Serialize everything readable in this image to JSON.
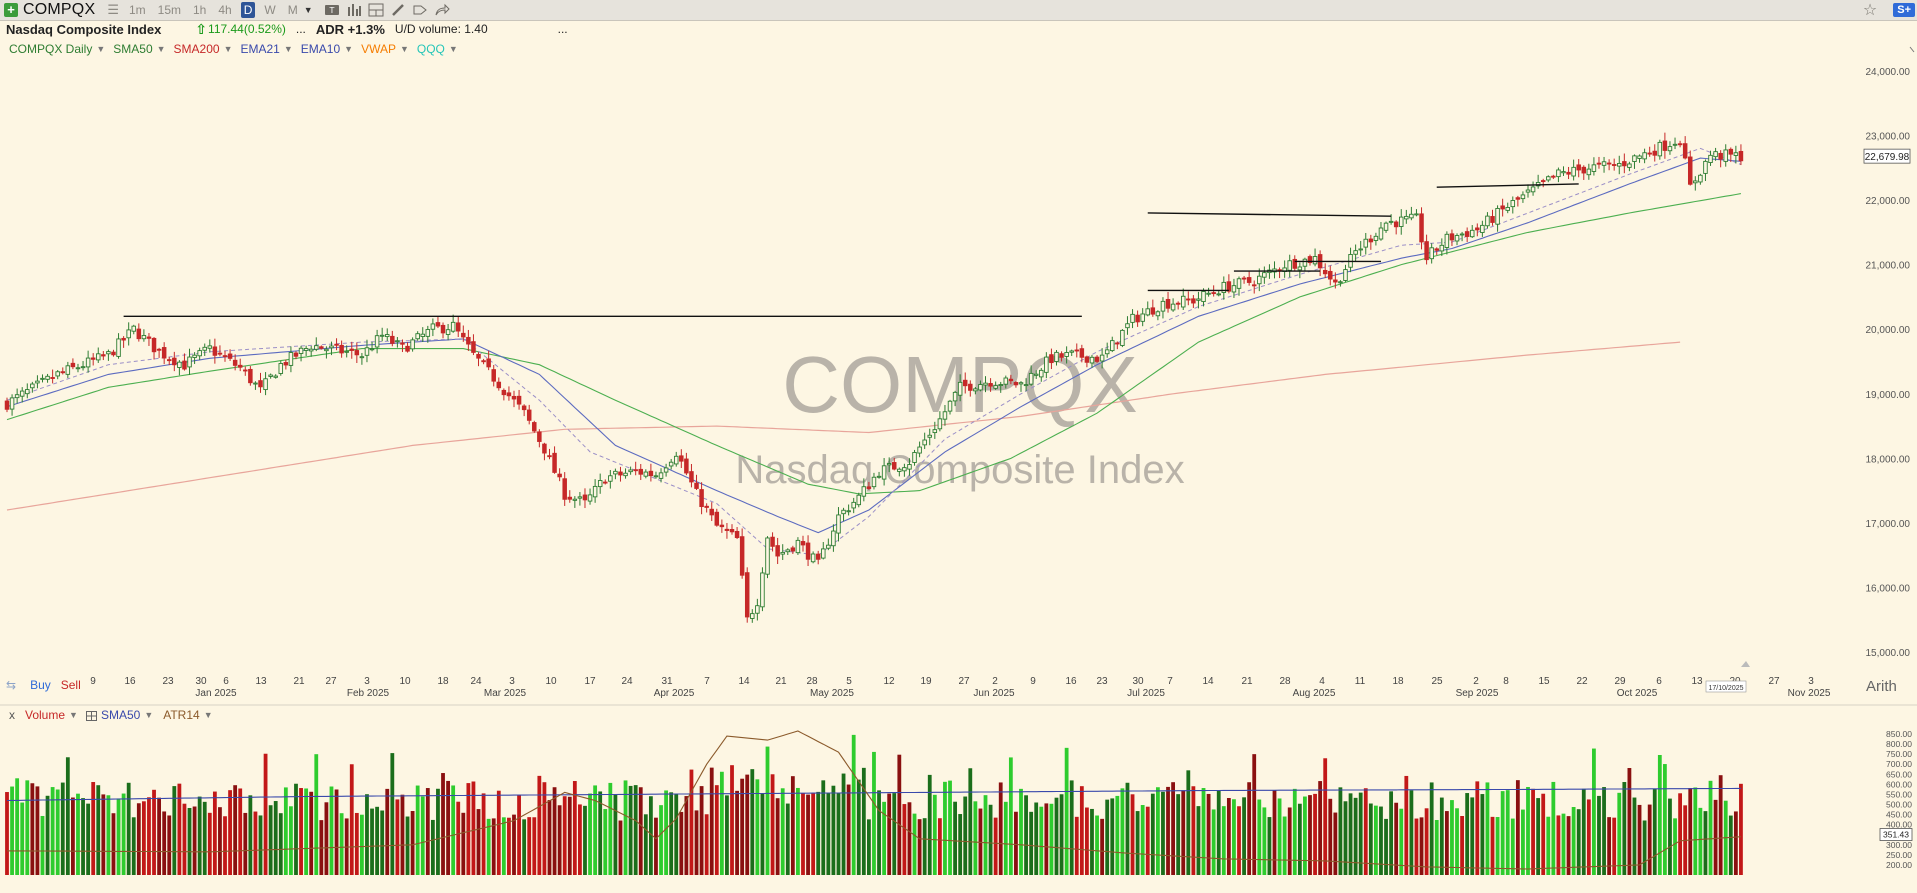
{
  "toolbar": {
    "symbol": "COMPQX",
    "timeframes": [
      "1m",
      "15m",
      "1h",
      "4h",
      "D",
      "W",
      "M"
    ],
    "active_timeframe": "D",
    "tools": [
      "chart-type-icon",
      "bar-chart-icon",
      "layout-icon",
      "pencil-icon",
      "tag-icon",
      "share-icon"
    ],
    "badge": "S+"
  },
  "info": {
    "name": "Nasdaq Composite Index",
    "change": "117.44(0.52%)",
    "separator": "...",
    "adr": "ADR +1.3%",
    "ud_volume": "U/D volume: 1.40",
    "trailing": "..."
  },
  "indicators": [
    {
      "label": "COMPQX Daily",
      "color": "#2e7d32"
    },
    {
      "label": "SMA50",
      "color": "#2e7d32"
    },
    {
      "label": "SMA200",
      "color": "#c62828"
    },
    {
      "label": "EMA21",
      "color": "#3949ab"
    },
    {
      "label": "EMA10",
      "color": "#3949ab"
    },
    {
      "label": "VWAP",
      "color": "#f57c00"
    },
    {
      "label": "QQQ",
      "color": "#26c6b8"
    }
  ],
  "watermark": {
    "symbol": "COMPQX",
    "name": "Nasdaq Composite Index"
  },
  "actions": {
    "buy": "Buy",
    "sell": "Sell"
  },
  "scale_mode": "Arith",
  "volume_indicators": [
    {
      "label": "Volume",
      "color": "#c62828"
    },
    {
      "label": "SMA50",
      "color": "#3949ab"
    },
    {
      "label": "ATR14",
      "color": "#8b5a2b"
    }
  ],
  "colors": {
    "up": "#2e7d32",
    "down": "#c62828",
    "background": "#fdf6e3"
  },
  "chart_data": [
    {
      "type": "candlestick",
      "x_tick_days": [
        "9",
        "16",
        "23",
        "30",
        "6",
        "13",
        "21",
        "27",
        "3",
        "10",
        "18",
        "24",
        "3",
        "10",
        "17",
        "24",
        "31",
        "7",
        "14",
        "21",
        "28",
        "5",
        "12",
        "19",
        "27",
        "2",
        "9",
        "16",
        "23",
        "30",
        "7",
        "14",
        "21",
        "28",
        "4",
        "11",
        "18",
        "25",
        "2",
        "8",
        "15",
        "22",
        "29",
        "6",
        "13",
        "20",
        "27",
        "3"
      ],
      "x_month_labels": [
        "Jan 2025",
        "Feb 2025",
        "Mar 2025",
        "Apr 2025",
        "May 2025",
        "Jun 2025",
        "Jul 2025",
        "Aug 2025",
        "Sep 2025",
        "Oct 2025",
        "Nov 2025"
      ],
      "y_ticks": [
        "15,000.00",
        "16,000.00",
        "17,000.00",
        "18,000.00",
        "19,000.00",
        "20,000.00",
        "21,000.00",
        "22,000.00",
        "23,000.00",
        "24,000.00"
      ],
      "ylim": [
        14800,
        24200
      ],
      "last_price_label": "22,679.98",
      "current_date_label": "17/10/2025",
      "close_path": [
        [
          0,
          18850
        ],
        [
          10,
          19300
        ],
        [
          20,
          19600
        ],
        [
          25,
          20000
        ],
        [
          30,
          19650
        ],
        [
          35,
          19450
        ],
        [
          40,
          19700
        ],
        [
          46,
          19400
        ],
        [
          50,
          19050
        ],
        [
          54,
          19450
        ],
        [
          60,
          19750
        ],
        [
          70,
          19600
        ],
        [
          74,
          19900
        ],
        [
          78,
          19700
        ],
        [
          84,
          20000
        ],
        [
          88,
          20050
        ],
        [
          92,
          19600
        ],
        [
          96,
          19250
        ],
        [
          102,
          18700
        ],
        [
          106,
          18150
        ],
        [
          110,
          17450
        ],
        [
          114,
          17300
        ],
        [
          118,
          17700
        ],
        [
          124,
          17800
        ],
        [
          128,
          17750
        ],
        [
          132,
          18100
        ],
        [
          136,
          17450
        ],
        [
          140,
          16950
        ],
        [
          144,
          16750
        ],
        [
          146,
          15500
        ],
        [
          148,
          15800
        ],
        [
          150,
          16800
        ],
        [
          152,
          16500
        ],
        [
          156,
          16700
        ],
        [
          160,
          16350
        ],
        [
          164,
          17100
        ],
        [
          168,
          17400
        ],
        [
          172,
          17800
        ],
        [
          178,
          17950
        ],
        [
          184,
          18600
        ],
        [
          188,
          19100
        ],
        [
          194,
          19200
        ],
        [
          200,
          19150
        ],
        [
          206,
          19550
        ],
        [
          210,
          19600
        ],
        [
          216,
          19550
        ],
        [
          222,
          20150
        ],
        [
          228,
          20400
        ],
        [
          234,
          20450
        ],
        [
          240,
          20650
        ],
        [
          246,
          20750
        ],
        [
          252,
          21000
        ],
        [
          258,
          21100
        ],
        [
          262,
          20700
        ],
        [
          266,
          21200
        ],
        [
          272,
          21650
        ],
        [
          278,
          21700
        ],
        [
          280,
          21100
        ],
        [
          284,
          21400
        ],
        [
          290,
          21550
        ],
        [
          296,
          21900
        ],
        [
          302,
          22200
        ],
        [
          306,
          22400
        ],
        [
          312,
          22500
        ],
        [
          318,
          22550
        ],
        [
          324,
          22750
        ],
        [
          330,
          22950
        ],
        [
          332,
          22200
        ],
        [
          336,
          22700
        ],
        [
          342,
          22680
        ]
      ],
      "sma50_path": [
        [
          0,
          18600
        ],
        [
          20,
          19100
        ],
        [
          40,
          19350
        ],
        [
          70,
          19700
        ],
        [
          90,
          19700
        ],
        [
          105,
          19450
        ],
        [
          120,
          18900
        ],
        [
          140,
          18200
        ],
        [
          158,
          17600
        ],
        [
          168,
          17450
        ],
        [
          180,
          17500
        ],
        [
          198,
          18000
        ],
        [
          215,
          18700
        ],
        [
          235,
          19800
        ],
        [
          255,
          20500
        ],
        [
          275,
          21000
        ],
        [
          300,
          21500
        ],
        [
          320,
          21800
        ],
        [
          342,
          22100
        ]
      ],
      "ema21_path": [
        [
          0,
          18800
        ],
        [
          20,
          19300
        ],
        [
          40,
          19550
        ],
        [
          70,
          19750
        ],
        [
          90,
          19850
        ],
        [
          105,
          19300
        ],
        [
          120,
          18200
        ],
        [
          140,
          17500
        ],
        [
          152,
          17100
        ],
        [
          160,
          16850
        ],
        [
          170,
          17200
        ],
        [
          185,
          18100
        ],
        [
          200,
          18800
        ],
        [
          215,
          19450
        ],
        [
          235,
          20200
        ],
        [
          255,
          20700
        ],
        [
          275,
          21100
        ],
        [
          285,
          21250
        ],
        [
          300,
          21650
        ],
        [
          320,
          22250
        ],
        [
          334,
          22650
        ],
        [
          342,
          22600
        ]
      ],
      "ema10_path": [
        [
          0,
          18900
        ],
        [
          20,
          19450
        ],
        [
          40,
          19650
        ],
        [
          70,
          19800
        ],
        [
          90,
          19850
        ],
        [
          105,
          18900
        ],
        [
          115,
          18100
        ],
        [
          140,
          17300
        ],
        [
          150,
          16600
        ],
        [
          160,
          16500
        ],
        [
          170,
          17100
        ],
        [
          185,
          18300
        ],
        [
          200,
          19000
        ],
        [
          215,
          19650
        ],
        [
          235,
          20350
        ],
        [
          255,
          20850
        ],
        [
          275,
          21300
        ],
        [
          285,
          21350
        ],
        [
          300,
          21800
        ],
        [
          320,
          22400
        ],
        [
          334,
          22800
        ],
        [
          342,
          22550
        ]
      ],
      "sma200_path": [
        [
          0,
          17200
        ],
        [
          40,
          17700
        ],
        [
          80,
          18200
        ],
        [
          110,
          18450
        ],
        [
          140,
          18500
        ],
        [
          170,
          18400
        ],
        [
          200,
          18650
        ],
        [
          230,
          19000
        ],
        [
          260,
          19300
        ],
        [
          300,
          19600
        ],
        [
          330,
          19800
        ]
      ],
      "trendlines": [
        {
          "from": [
            23,
            20200
          ],
          "to": [
            212,
            20200
          ]
        },
        {
          "from": [
            225,
            21800
          ],
          "to": [
            273,
            21750
          ]
        },
        {
          "from": [
            225,
            20600
          ],
          "to": [
            241,
            20600
          ]
        },
        {
          "from": [
            242,
            20900
          ],
          "to": [
            259,
            20900
          ]
        },
        {
          "from": [
            254,
            21050
          ],
          "to": [
            271,
            21050
          ]
        },
        {
          "from": [
            282,
            22200
          ],
          "to": [
            310,
            22250
          ]
        }
      ]
    },
    {
      "type": "bar",
      "title": "Volume",
      "y_ticks": [
        "200.00",
        "250.00",
        "300.00",
        "350.00",
        "400.00",
        "450.00",
        "500.00",
        "550.00",
        "600.00",
        "650.00",
        "700.00",
        "750.00",
        "800.00",
        "850.00"
      ],
      "ylim": [
        150,
        880
      ],
      "last_value_label": "351.43",
      "sma50_level": [
        [
          0,
          520
        ],
        [
          60,
          540
        ],
        [
          120,
          550
        ],
        [
          180,
          560
        ],
        [
          240,
          570
        ],
        [
          300,
          575
        ],
        [
          342,
          580
        ]
      ],
      "atr14_path": [
        [
          0,
          270
        ],
        [
          40,
          265
        ],
        [
          80,
          300
        ],
        [
          100,
          420
        ],
        [
          110,
          560
        ],
        [
          116,
          520
        ],
        [
          124,
          420
        ],
        [
          128,
          330
        ],
        [
          132,
          430
        ],
        [
          138,
          700
        ],
        [
          142,
          840
        ],
        [
          150,
          820
        ],
        [
          156,
          865
        ],
        [
          164,
          760
        ],
        [
          172,
          470
        ],
        [
          180,
          330
        ],
        [
          200,
          300
        ],
        [
          220,
          260
        ],
        [
          240,
          230
        ],
        [
          260,
          220
        ],
        [
          280,
          190
        ],
        [
          300,
          180
        ],
        [
          322,
          200
        ],
        [
          330,
          320
        ],
        [
          342,
          340
        ]
      ]
    }
  ]
}
